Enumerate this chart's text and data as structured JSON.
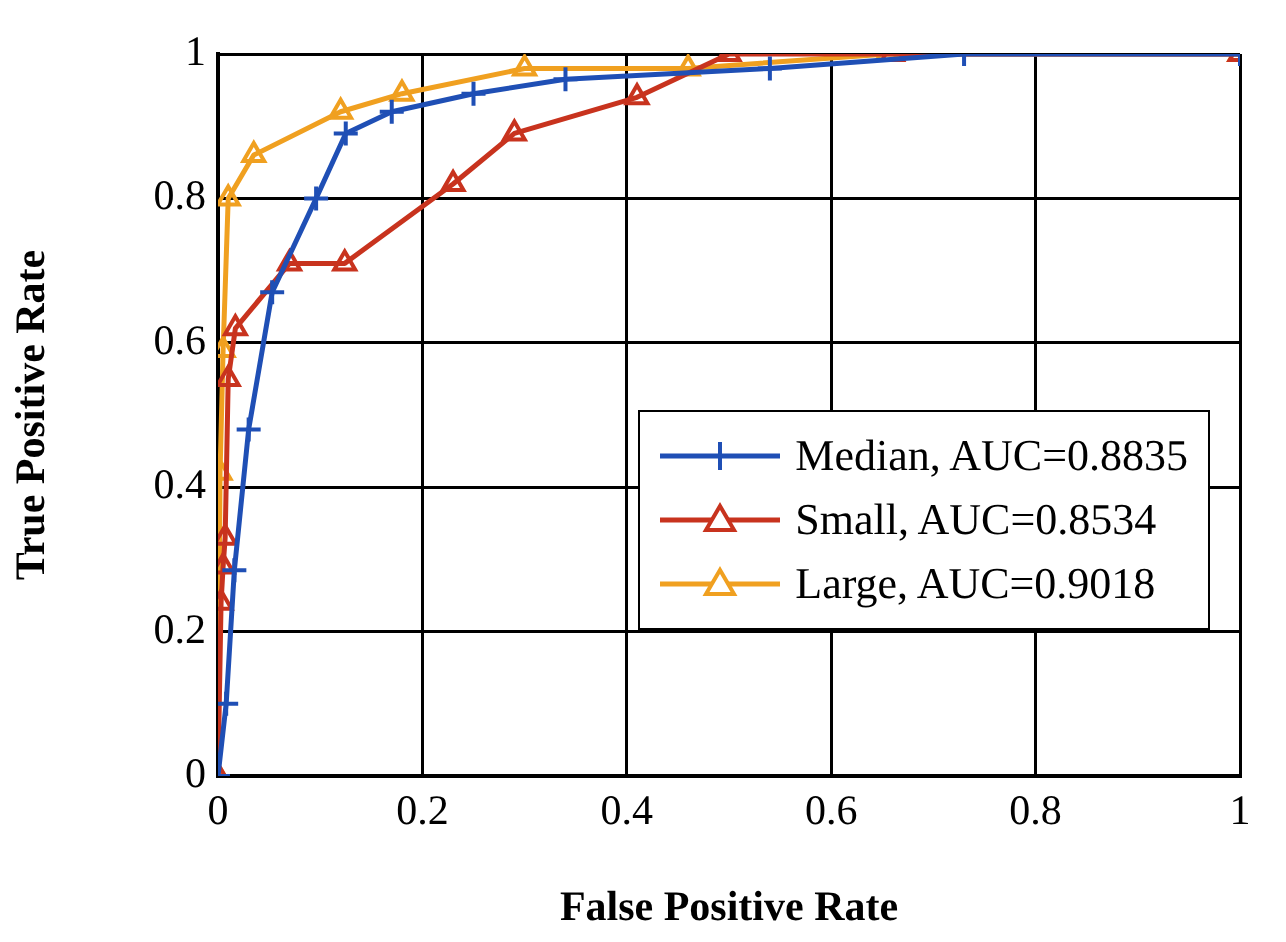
{
  "chart_data": {
    "type": "line",
    "xlabel": "False Positive Rate",
    "ylabel": "True Positive Rate",
    "xlim": [
      0,
      1
    ],
    "ylim": [
      0,
      1
    ],
    "xticks": [
      0,
      0.2,
      0.4,
      0.6,
      0.8,
      1
    ],
    "yticks": [
      0,
      0.2,
      0.4,
      0.6,
      0.8,
      1
    ],
    "grid": true,
    "legend": "right",
    "line_style": "solid",
    "series": [
      {
        "name": "Median, AUC=0.8835",
        "color": "#1f4fb5",
        "marker": "cross",
        "x": [
          0,
          0.008,
          0.016,
          0.03,
          0.053,
          0.096,
          0.125,
          0.17,
          0.25,
          0.34,
          0.54,
          0.73,
          1
        ],
        "values": [
          0,
          0.1,
          0.285,
          0.48,
          0.67,
          0.8,
          0.89,
          0.92,
          0.945,
          0.965,
          0.98,
          1,
          1
        ]
      },
      {
        "name": "Small, AUC=0.8534",
        "color": "#c8331e",
        "marker": "triangle",
        "x": [
          0,
          0.003,
          0.005,
          0.007,
          0.01,
          0.017,
          0.07,
          0.124,
          0.23,
          0.29,
          0.41,
          0.5,
          0.66,
          1
        ],
        "values": [
          0,
          0.24,
          0.29,
          0.33,
          0.55,
          0.62,
          0.71,
          0.71,
          0.82,
          0.89,
          0.94,
          1,
          1,
          1
        ]
      },
      {
        "name": "Large, AUC=0.9018",
        "color": "#f0a020",
        "marker": "triangle",
        "x": [
          0,
          0.002,
          0.005,
          0.01,
          0.035,
          0.12,
          0.18,
          0.3,
          0.46,
          0.655,
          1
        ],
        "values": [
          0,
          0.42,
          0.59,
          0.8,
          0.86,
          0.92,
          0.945,
          0.98,
          0.98,
          1,
          1
        ]
      }
    ]
  }
}
